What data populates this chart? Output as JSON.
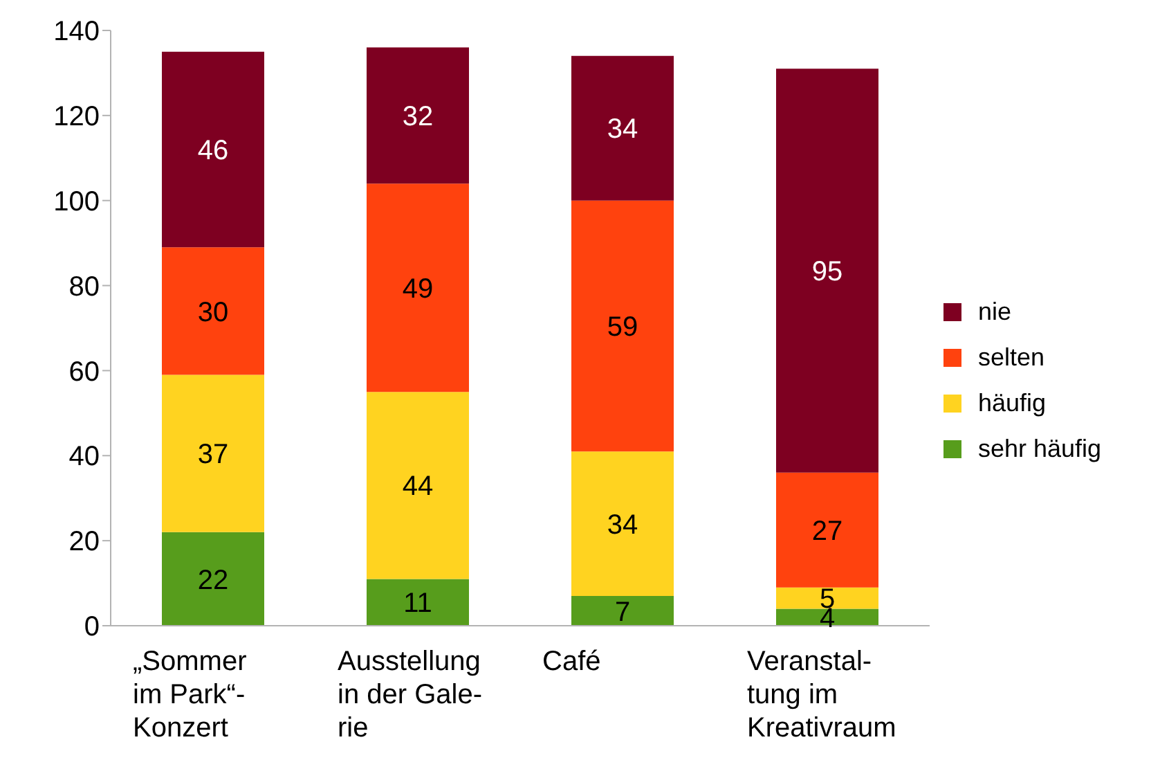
{
  "chart_data": {
    "type": "bar",
    "stacked": true,
    "categories": [
      "„Sommer\nim Park“-\nKonzert",
      "Ausstellung\nin der Gale-\nrie",
      "Café",
      "Veranstal-\ntung im\nKreativraum"
    ],
    "series": [
      {
        "name": "sehr häufig",
        "color": "#579d1c",
        "values": [
          22,
          11,
          7,
          4
        ]
      },
      {
        "name": "häufig",
        "color": "#ffd320",
        "values": [
          37,
          44,
          34,
          5
        ]
      },
      {
        "name": "selten",
        "color": "#ff420e",
        "values": [
          30,
          49,
          59,
          27
        ]
      },
      {
        "name": "nie",
        "color": "#7e0021",
        "values": [
          46,
          32,
          34,
          95
        ]
      }
    ],
    "ylim": [
      0,
      140
    ],
    "yticks": [
      0,
      20,
      40,
      60,
      80,
      100,
      120,
      140
    ],
    "data_labels": true,
    "legend": "right"
  }
}
